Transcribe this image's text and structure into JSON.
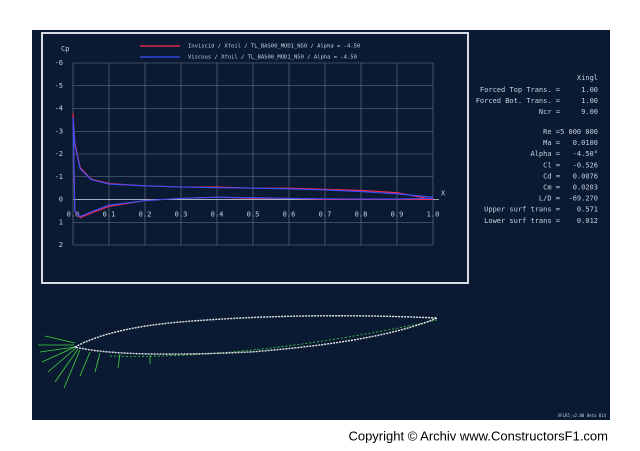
{
  "chart_data": {
    "type": "line",
    "y_label": "Cp",
    "x_label": "X",
    "xlim": [
      0,
      1
    ],
    "ylim": [
      -6,
      2
    ],
    "y_inverted": true,
    "grid": true,
    "xticks": [
      {
        "value": 0,
        "label": "0.0"
      },
      0.1,
      0.2,
      0.3,
      0.4,
      0.5,
      0.6,
      0.7,
      0.8,
      0.9,
      {
        "value": 1,
        "label": "1.0"
      }
    ],
    "yticks": [
      -6,
      -5,
      -4,
      -3,
      -2,
      -1,
      0,
      1,
      2
    ],
    "series": [
      {
        "name": "Inviscid / Xfoil / TL_BAS00_MOD1_N50 / Alpha = -4.50",
        "color": "#ff2a4a",
        "x": [
          1,
          0.9,
          0.8,
          0.7,
          0.6,
          0.5,
          0.4,
          0.3,
          0.2,
          0.1,
          0.05,
          0.02,
          0.005,
          0,
          0.005,
          0.02,
          0.05,
          0.1,
          0.2,
          0.3,
          0.4,
          0.5,
          0.6,
          0.7,
          0.8,
          0.9,
          1
        ],
        "values": [
          0,
          -0.3,
          -0.4,
          -0.45,
          -0.5,
          -0.5,
          -0.55,
          -0.55,
          -0.6,
          -0.7,
          -0.9,
          -1.4,
          -2.5,
          -3.8,
          0.5,
          0.8,
          0.6,
          0.3,
          0.05,
          -0.05,
          -0.1,
          -0.05,
          -0.05,
          0,
          0,
          0,
          0
        ]
      },
      {
        "name": "Viscous / Xfoil / TL_BAS00_MOD1_N50 / Alpha = -4.50",
        "color": "#3a50ff",
        "x": [
          1,
          0.9,
          0.8,
          0.7,
          0.6,
          0.5,
          0.4,
          0.3,
          0.2,
          0.1,
          0.05,
          0.02,
          0.005,
          0,
          0.005,
          0.02,
          0.05,
          0.1,
          0.2,
          0.3,
          0.4,
          0.5,
          0.6,
          0.7,
          0.8,
          0.9,
          1
        ],
        "values": [
          -0.1,
          -0.25,
          -0.35,
          -0.42,
          -0.47,
          -0.5,
          -0.52,
          -0.55,
          -0.6,
          -0.68,
          -0.88,
          -1.35,
          -2.4,
          -3.6,
          0.5,
          0.75,
          0.55,
          0.25,
          0.05,
          -0.05,
          -0.1,
          -0.08,
          -0.05,
          -0.03,
          -0.02,
          -0.02,
          -0.05
        ]
      }
    ]
  },
  "panel": {
    "title": "Xingl",
    "rows": [
      [
        "Forced Top Trans. =",
        "1.00"
      ],
      [
        "Forced Bot. Trans. =",
        "1.00"
      ],
      [
        "Ncr =",
        "9.00"
      ],
      [
        "Re =",
        "5 000 000"
      ],
      [
        "Ma =",
        "0.0100"
      ],
      [
        "Alpha =",
        "-4.50°"
      ],
      [
        "Cl =",
        "-0.526"
      ],
      [
        "Cd =",
        "0.0076"
      ],
      [
        "Cm =",
        "0.0203"
      ],
      [
        "L/D =",
        "-69.270"
      ],
      [
        "Upper surf trans =",
        "0.571"
      ],
      [
        "Lower surf trans =",
        "0.012"
      ]
    ]
  },
  "version": "XFLR5_v2.00 Beta 014",
  "footer": "Copyright © Archiv www.ConstructorsF1.com"
}
